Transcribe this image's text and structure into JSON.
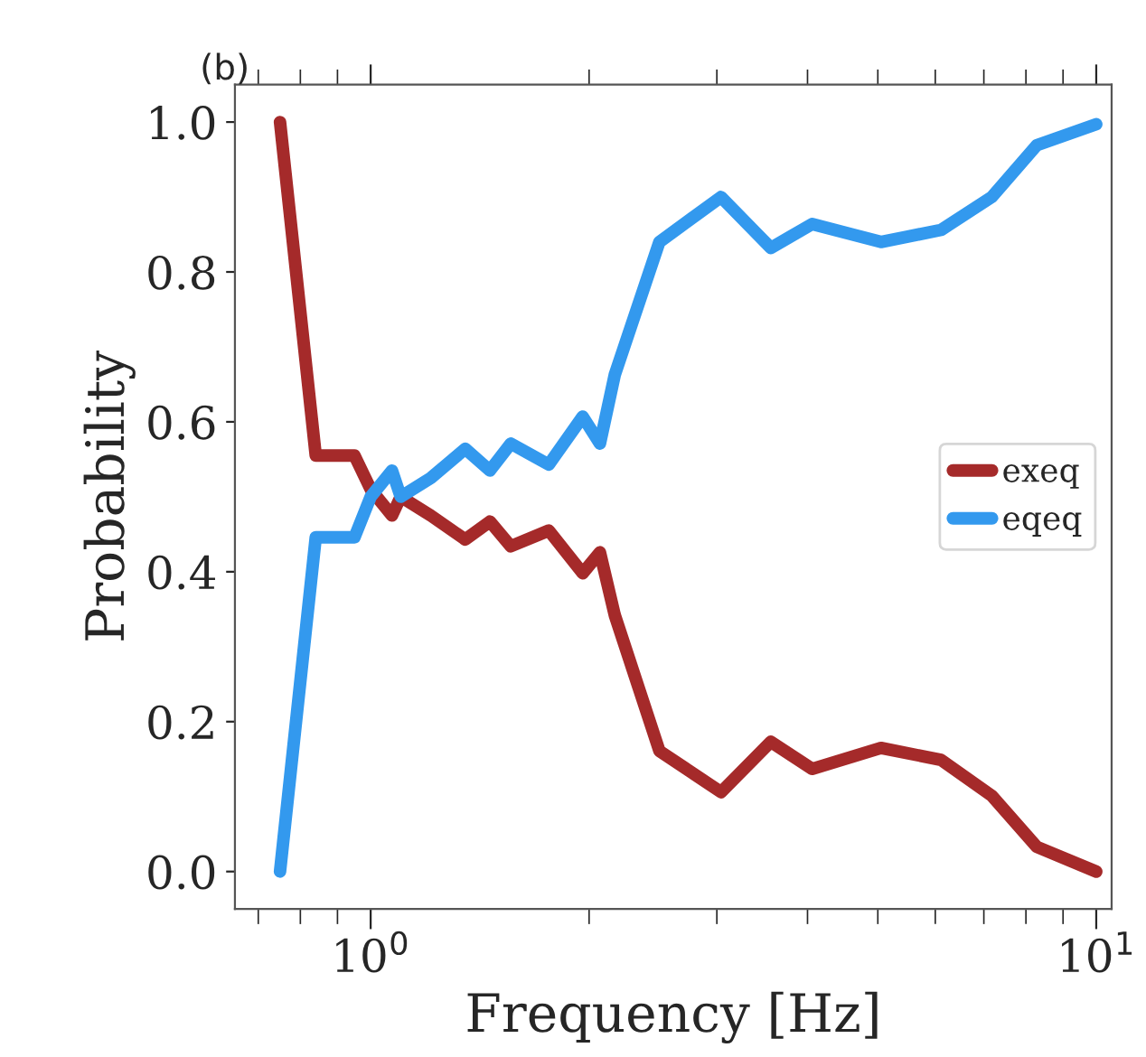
{
  "chart_data": {
    "type": "line",
    "title": "(b)",
    "xlabel": "Frequency [Hz]",
    "ylabel": "Probability",
    "log": "x",
    "xlim": [
      0.65,
      10.5
    ],
    "xticks": [
      {
        "value": 1,
        "label": "10$^{0}$"
      },
      {
        "value": 10,
        "label": "10$^{1}$"
      }
    ],
    "ylim": [
      -0.05,
      1.05
    ],
    "yticks": [
      {
        "value": 0,
        "label": "0.0"
      },
      {
        "value": 0.2,
        "label": "0.2"
      },
      {
        "value": 0.4,
        "label": "0.4"
      },
      {
        "value": 0.6,
        "label": "0.6"
      },
      {
        "value": 0.8,
        "label": "0.8"
      },
      {
        "value": 1,
        "label": "1.0"
      }
    ],
    "grid": false,
    "legend": "right",
    "marker": "none",
    "line_style": "solid",
    "x": [
      0.75,
      0.84,
      0.95,
      1.0,
      1.07,
      1.1,
      1.21,
      1.35,
      1.46,
      1.56,
      1.76,
      1.96,
      2.07,
      2.17,
      2.5,
      3.04,
      3.56,
      4.06,
      5.05,
      6.11,
      7.18,
      8.28,
      10.0
    ],
    "series": [
      {
        "name": "exeq",
        "color": "#a52a2a",
        "values": [
          1.0,
          0.555,
          0.555,
          0.51,
          0.475,
          0.5,
          0.475,
          0.443,
          0.467,
          0.434,
          0.455,
          0.398,
          0.426,
          0.342,
          0.161,
          0.106,
          0.173,
          0.137,
          0.165,
          0.149,
          0.101,
          0.033,
          0.0
        ]
      },
      {
        "name": "eqeq",
        "color": "#3399ee",
        "values": [
          0.0,
          0.446,
          0.446,
          0.5,
          0.535,
          0.5,
          0.525,
          0.564,
          0.535,
          0.571,
          0.543,
          0.607,
          0.571,
          0.663,
          0.84,
          0.9,
          0.832,
          0.864,
          0.84,
          0.856,
          0.9,
          0.969,
          0.997
        ]
      }
    ]
  }
}
